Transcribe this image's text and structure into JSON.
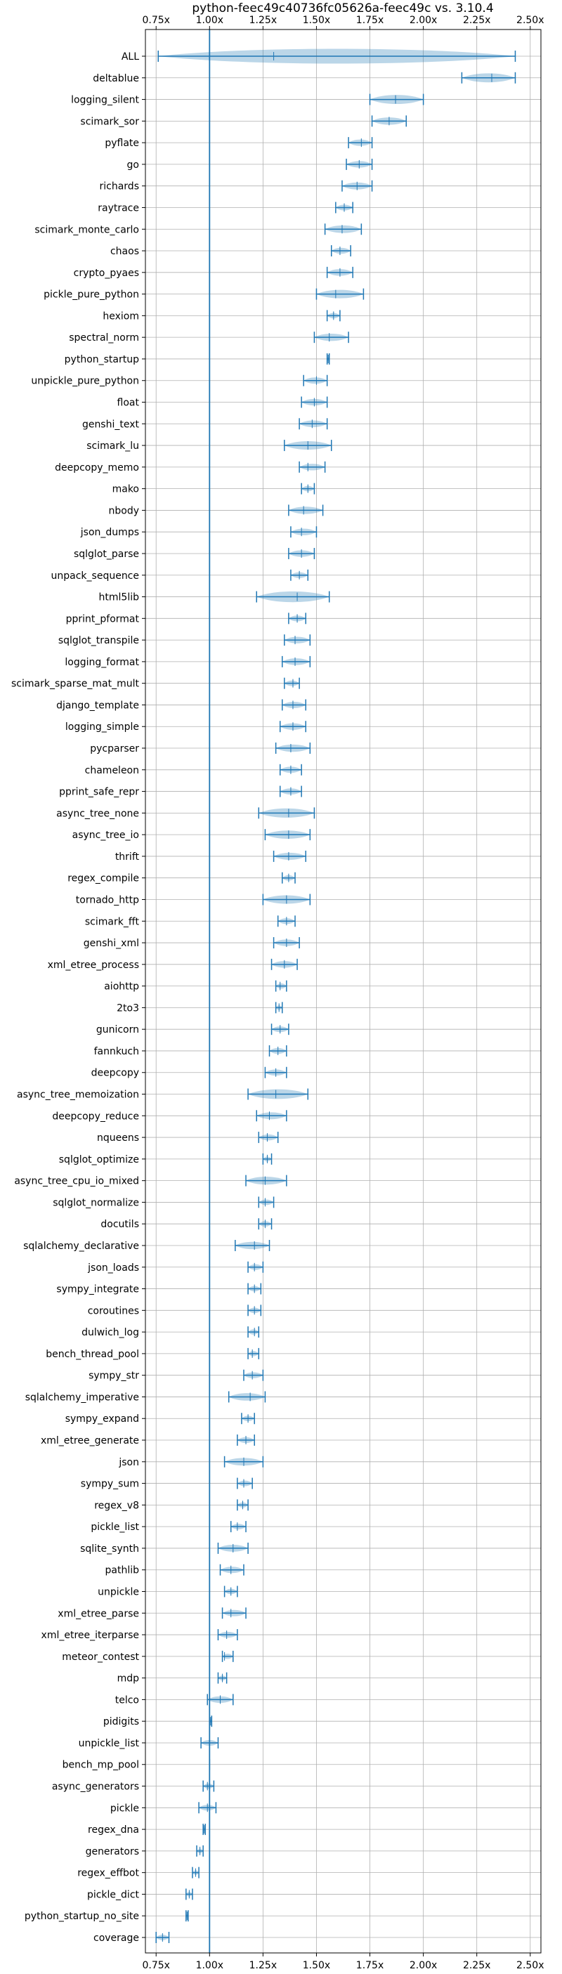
{
  "chart_data": {
    "type": "violin",
    "title": "python-feec49c40736fc05626a-feec49c vs. 3.10.4",
    "xlim": [
      0.7,
      2.55
    ],
    "x_ticks": [
      "0.75x",
      "1.00x",
      "1.25x",
      "1.50x",
      "1.75x",
      "2.00x",
      "2.25x",
      "2.50x"
    ],
    "x_tick_values": [
      0.75,
      1.0,
      1.25,
      1.5,
      1.75,
      2.0,
      2.25,
      2.5
    ],
    "reference_x": 1.0,
    "grid": true,
    "series_color": "#1f77b4",
    "series": [
      {
        "name": "ALL",
        "min": 0.76,
        "max": 2.43,
        "median": 1.3
      },
      {
        "name": "deltablue",
        "min": 2.18,
        "max": 2.43,
        "median": 2.32
      },
      {
        "name": "logging_silent",
        "min": 1.75,
        "max": 2.0,
        "median": 1.87
      },
      {
        "name": "scimark_sor",
        "min": 1.76,
        "max": 1.92,
        "median": 1.84
      },
      {
        "name": "pyflate",
        "min": 1.65,
        "max": 1.76,
        "median": 1.71
      },
      {
        "name": "go",
        "min": 1.64,
        "max": 1.76,
        "median": 1.7
      },
      {
        "name": "richards",
        "min": 1.62,
        "max": 1.76,
        "median": 1.69
      },
      {
        "name": "raytrace",
        "min": 1.59,
        "max": 1.67,
        "median": 1.63
      },
      {
        "name": "scimark_monte_carlo",
        "min": 1.54,
        "max": 1.71,
        "median": 1.62
      },
      {
        "name": "chaos",
        "min": 1.57,
        "max": 1.66,
        "median": 1.61
      },
      {
        "name": "crypto_pyaes",
        "min": 1.55,
        "max": 1.67,
        "median": 1.61
      },
      {
        "name": "pickle_pure_python",
        "min": 1.5,
        "max": 1.72,
        "median": 1.59
      },
      {
        "name": "hexiom",
        "min": 1.55,
        "max": 1.61,
        "median": 1.58
      },
      {
        "name": "spectral_norm",
        "min": 1.49,
        "max": 1.65,
        "median": 1.56
      },
      {
        "name": "python_startup",
        "min": 1.55,
        "max": 1.56,
        "median": 1.555
      },
      {
        "name": "unpickle_pure_python",
        "min": 1.44,
        "max": 1.55,
        "median": 1.5
      },
      {
        "name": "float",
        "min": 1.43,
        "max": 1.55,
        "median": 1.49
      },
      {
        "name": "genshi_text",
        "min": 1.42,
        "max": 1.55,
        "median": 1.48
      },
      {
        "name": "scimark_lu",
        "min": 1.35,
        "max": 1.57,
        "median": 1.46
      },
      {
        "name": "deepcopy_memo",
        "min": 1.42,
        "max": 1.54,
        "median": 1.46
      },
      {
        "name": "mako",
        "min": 1.43,
        "max": 1.49,
        "median": 1.46
      },
      {
        "name": "nbody",
        "min": 1.37,
        "max": 1.53,
        "median": 1.44
      },
      {
        "name": "json_dumps",
        "min": 1.38,
        "max": 1.5,
        "median": 1.43
      },
      {
        "name": "sqlglot_parse",
        "min": 1.37,
        "max": 1.49,
        "median": 1.43
      },
      {
        "name": "unpack_sequence",
        "min": 1.38,
        "max": 1.46,
        "median": 1.42
      },
      {
        "name": "html5lib",
        "min": 1.22,
        "max": 1.56,
        "median": 1.41
      },
      {
        "name": "pprint_pformat",
        "min": 1.37,
        "max": 1.45,
        "median": 1.41
      },
      {
        "name": "sqlglot_transpile",
        "min": 1.35,
        "max": 1.47,
        "median": 1.4
      },
      {
        "name": "logging_format",
        "min": 1.34,
        "max": 1.47,
        "median": 1.4
      },
      {
        "name": "scimark_sparse_mat_mult",
        "min": 1.35,
        "max": 1.42,
        "median": 1.39
      },
      {
        "name": "django_template",
        "min": 1.34,
        "max": 1.45,
        "median": 1.39
      },
      {
        "name": "logging_simple",
        "min": 1.33,
        "max": 1.45,
        "median": 1.39
      },
      {
        "name": "pycparser",
        "min": 1.31,
        "max": 1.47,
        "median": 1.38
      },
      {
        "name": "chameleon",
        "min": 1.33,
        "max": 1.43,
        "median": 1.38
      },
      {
        "name": "pprint_safe_repr",
        "min": 1.33,
        "max": 1.43,
        "median": 1.38
      },
      {
        "name": "async_tree_none",
        "min": 1.23,
        "max": 1.49,
        "median": 1.37
      },
      {
        "name": "async_tree_io",
        "min": 1.26,
        "max": 1.47,
        "median": 1.37
      },
      {
        "name": "thrift",
        "min": 1.3,
        "max": 1.45,
        "median": 1.37
      },
      {
        "name": "regex_compile",
        "min": 1.34,
        "max": 1.4,
        "median": 1.37
      },
      {
        "name": "tornado_http",
        "min": 1.25,
        "max": 1.47,
        "median": 1.36
      },
      {
        "name": "scimark_fft",
        "min": 1.32,
        "max": 1.4,
        "median": 1.36
      },
      {
        "name": "genshi_xml",
        "min": 1.3,
        "max": 1.42,
        "median": 1.36
      },
      {
        "name": "xml_etree_process",
        "min": 1.29,
        "max": 1.41,
        "median": 1.35
      },
      {
        "name": "aiohttp",
        "min": 1.31,
        "max": 1.36,
        "median": 1.33
      },
      {
        "name": "2to3",
        "min": 1.31,
        "max": 1.34,
        "median": 1.325
      },
      {
        "name": "gunicorn",
        "min": 1.29,
        "max": 1.37,
        "median": 1.33
      },
      {
        "name": "fannkuch",
        "min": 1.28,
        "max": 1.36,
        "median": 1.32
      },
      {
        "name": "deepcopy",
        "min": 1.26,
        "max": 1.36,
        "median": 1.31
      },
      {
        "name": "async_tree_memoization",
        "min": 1.18,
        "max": 1.46,
        "median": 1.31
      },
      {
        "name": "deepcopy_reduce",
        "min": 1.22,
        "max": 1.36,
        "median": 1.28
      },
      {
        "name": "nqueens",
        "min": 1.23,
        "max": 1.32,
        "median": 1.27
      },
      {
        "name": "sqlglot_optimize",
        "min": 1.25,
        "max": 1.29,
        "median": 1.27
      },
      {
        "name": "async_tree_cpu_io_mixed",
        "min": 1.17,
        "max": 1.36,
        "median": 1.26
      },
      {
        "name": "sqlglot_normalize",
        "min": 1.23,
        "max": 1.3,
        "median": 1.26
      },
      {
        "name": "docutils",
        "min": 1.23,
        "max": 1.29,
        "median": 1.26
      },
      {
        "name": "sqlalchemy_declarative",
        "min": 1.12,
        "max": 1.28,
        "median": 1.21
      },
      {
        "name": "json_loads",
        "min": 1.18,
        "max": 1.25,
        "median": 1.21
      },
      {
        "name": "sympy_integrate",
        "min": 1.18,
        "max": 1.24,
        "median": 1.21
      },
      {
        "name": "coroutines",
        "min": 1.18,
        "max": 1.24,
        "median": 1.21
      },
      {
        "name": "dulwich_log",
        "min": 1.18,
        "max": 1.23,
        "median": 1.21
      },
      {
        "name": "bench_thread_pool",
        "min": 1.18,
        "max": 1.23,
        "median": 1.2
      },
      {
        "name": "sympy_str",
        "min": 1.16,
        "max": 1.25,
        "median": 1.2
      },
      {
        "name": "sqlalchemy_imperative",
        "min": 1.09,
        "max": 1.26,
        "median": 1.19
      },
      {
        "name": "sympy_expand",
        "min": 1.15,
        "max": 1.21,
        "median": 1.18
      },
      {
        "name": "xml_etree_generate",
        "min": 1.13,
        "max": 1.21,
        "median": 1.17
      },
      {
        "name": "json",
        "min": 1.07,
        "max": 1.25,
        "median": 1.16
      },
      {
        "name": "sympy_sum",
        "min": 1.13,
        "max": 1.2,
        "median": 1.16
      },
      {
        "name": "regex_v8",
        "min": 1.13,
        "max": 1.18,
        "median": 1.155
      },
      {
        "name": "pickle_list",
        "min": 1.1,
        "max": 1.17,
        "median": 1.13
      },
      {
        "name": "sqlite_synth",
        "min": 1.04,
        "max": 1.18,
        "median": 1.11
      },
      {
        "name": "pathlib",
        "min": 1.05,
        "max": 1.16,
        "median": 1.1
      },
      {
        "name": "unpickle",
        "min": 1.07,
        "max": 1.13,
        "median": 1.1
      },
      {
        "name": "xml_etree_parse",
        "min": 1.06,
        "max": 1.17,
        "median": 1.1
      },
      {
        "name": "xml_etree_iterparse",
        "min": 1.04,
        "max": 1.13,
        "median": 1.08
      },
      {
        "name": "meteor_contest",
        "min": 1.06,
        "max": 1.11,
        "median": 1.07
      },
      {
        "name": "mdp",
        "min": 1.04,
        "max": 1.08,
        "median": 1.06
      },
      {
        "name": "telco",
        "min": 0.99,
        "max": 1.11,
        "median": 1.05
      },
      {
        "name": "pidigits",
        "min": 1.0,
        "max": 1.01,
        "median": 1.005
      },
      {
        "name": "unpickle_list",
        "min": 0.96,
        "max": 1.04,
        "median": 1.0
      },
      {
        "name": "bench_mp_pool",
        "min": 1.0,
        "max": 1.0,
        "median": 1.0
      },
      {
        "name": "async_generators",
        "min": 0.97,
        "max": 1.02,
        "median": 0.99
      },
      {
        "name": "pickle",
        "min": 0.95,
        "max": 1.03,
        "median": 0.99
      },
      {
        "name": "regex_dna",
        "min": 0.97,
        "max": 0.98,
        "median": 0.975
      },
      {
        "name": "generators",
        "min": 0.94,
        "max": 0.97,
        "median": 0.955
      },
      {
        "name": "regex_effbot",
        "min": 0.92,
        "max": 0.95,
        "median": 0.935
      },
      {
        "name": "pickle_dict",
        "min": 0.89,
        "max": 0.92,
        "median": 0.905
      },
      {
        "name": "python_startup_no_site",
        "min": 0.89,
        "max": 0.9,
        "median": 0.895
      },
      {
        "name": "coverage",
        "min": 0.75,
        "max": 0.81,
        "median": 0.78
      }
    ]
  }
}
